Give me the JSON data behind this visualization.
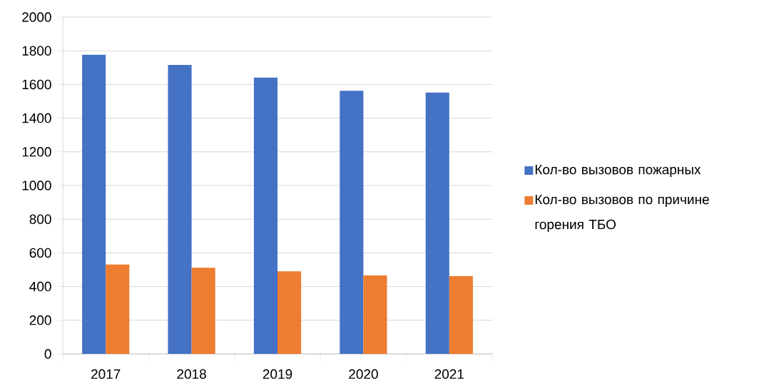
{
  "chart_data": {
    "type": "bar",
    "categories": [
      "2017",
      "2018",
      "2019",
      "2020",
      "2021"
    ],
    "series": [
      {
        "name": "Кол-во вызовов пожарных",
        "color": "#4472c4",
        "values": [
          1776,
          1716,
          1641,
          1562,
          1552
        ]
      },
      {
        "name": "Кол-во вызовов по причине горения ТБО",
        "color": "#ed7d31",
        "values": [
          531,
          512,
          491,
          466,
          462
        ]
      }
    ],
    "ylim": [
      0,
      2000
    ],
    "yticks": [
      0,
      200,
      400,
      600,
      800,
      1000,
      1200,
      1400,
      1600,
      1800,
      2000
    ],
    "grid": "y",
    "legend": "right"
  }
}
